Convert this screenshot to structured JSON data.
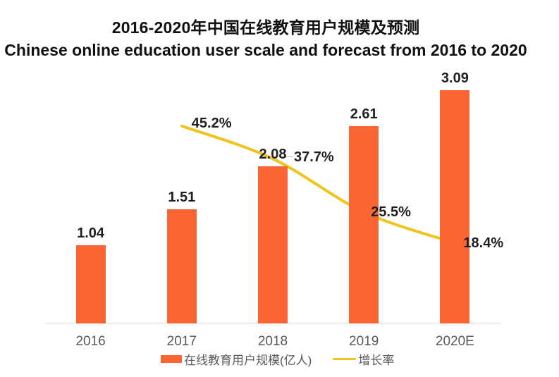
{
  "title": "2016-2020年中国在线教育用户规模及预测",
  "subtitle": "Chinese online education user scale and forecast from 2016 to 2020",
  "chart_data": {
    "type": "bar",
    "subtype": "bar-line-combo",
    "title": "2016-2020年中国在线教育用户规模及预测",
    "subtitle": "Chinese online education user scale and forecast from 2016 to 2020",
    "categories": [
      "2016",
      "2017",
      "2018",
      "2019",
      "2020E"
    ],
    "series": [
      {
        "name": "在线教育用户规模(亿人)",
        "type": "bar",
        "color": "#F96634",
        "values": [
          1.04,
          1.51,
          2.08,
          2.61,
          3.09
        ],
        "data_labels": [
          "1.04",
          "1.51",
          "2.08",
          "2.61",
          "3.09"
        ]
      },
      {
        "name": "增长率",
        "type": "line",
        "color": "#EFC41E",
        "values": [
          null,
          45.2,
          37.7,
          25.5,
          18.4
        ],
        "data_labels": [
          null,
          "45.2%",
          "37.7%",
          "25.5%",
          "18.4%"
        ]
      }
    ],
    "xlabel": "",
    "ylabel": "",
    "ylim": [
      0,
      3.5
    ],
    "y2lim_percent": [
      0,
      56.5
    ],
    "grid": false,
    "legend_position": "bottom",
    "y_axis_labels_visible": false
  },
  "colors": {
    "bar": "#F96634",
    "line": "#EFC41E",
    "axis_line": "#D9D9D9",
    "axis_text": "#595959",
    "data_label_text": "#1F1F1F",
    "leader_line": "#BFBFBF",
    "background": "#FFFFFF"
  }
}
